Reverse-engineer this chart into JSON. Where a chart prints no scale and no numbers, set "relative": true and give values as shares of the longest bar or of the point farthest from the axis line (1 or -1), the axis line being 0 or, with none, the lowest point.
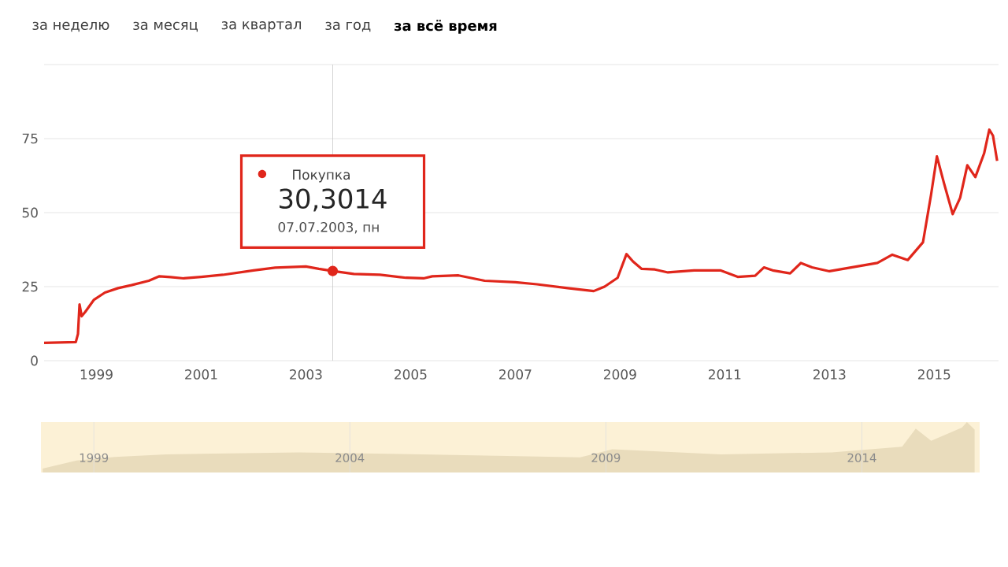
{
  "chart_data": [
    {
      "type": "line",
      "annotations": [
        "за неделю",
        "за месяц",
        "за квартал",
        "за год",
        "за всё время",
        {
          "text": "30,3014",
          "x": "2003-07-07",
          "y": 30.3014
        },
        {
          "text": "07.07.2003, пн",
          "x": "2003-07-07",
          "y": 30.3014
        }
      ],
      "x": [
        "1998-01-01",
        "1998-08-10",
        "1998-08-25",
        "1998-09-05",
        "1998-09-20",
        "1998-10-15",
        "1998-12-15",
        "1999-03-01",
        "1999-06-01",
        "1999-09-01",
        "2000-01-01",
        "2000-03-15",
        "2000-06-01",
        "2000-09-01",
        "2001-01-01",
        "2001-06-01",
        "2002-01-01",
        "2002-06-01",
        "2003-01-01",
        "2003-04-01",
        "2003-07-07",
        "2003-12-01",
        "2004-06-01",
        "2004-12-01",
        "2005-04-01",
        "2005-06-01",
        "2005-12-01",
        "2006-06-01",
        "2007-01-01",
        "2007-06-01",
        "2008-01-01",
        "2008-07-01",
        "2008-09-15",
        "2008-12-15",
        "2009-02-15",
        "2009-04-01",
        "2009-06-01",
        "2009-09-01",
        "2009-12-01",
        "2010-06-01",
        "2010-12-01",
        "2011-04-01",
        "2011-08-01",
        "2011-10-01",
        "2011-12-01",
        "2012-04-01",
        "2012-06-15",
        "2012-09-01",
        "2013-01-01",
        "2013-06-01",
        "2013-12-01",
        "2014-03-15",
        "2014-07-01",
        "2014-10-15",
        "2014-12-10",
        "2015-01-20",
        "2015-03-10",
        "2015-05-10",
        "2015-07-01",
        "2015-08-20",
        "2015-10-15",
        "2015-12-15",
        "2016-01-20",
        "2016-02-15",
        "2016-03-15"
      ],
      "series": [
        {
          "name": "Покупка",
          "color": "#e0261b",
          "values": [
            6,
            6.3,
            9,
            19,
            15,
            16.5,
            20.6,
            23,
            24.5,
            25.5,
            27,
            28.5,
            28.2,
            27.8,
            28.3,
            29,
            30.5,
            31.4,
            31.8,
            31,
            30.3,
            29.3,
            29,
            28,
            27.8,
            28.5,
            28.8,
            27,
            26.5,
            25.8,
            24.5,
            23.5,
            25,
            28,
            36,
            33.5,
            31,
            30.8,
            29.8,
            30.5,
            30.5,
            28.3,
            28.7,
            31.5,
            30.5,
            29.5,
            33,
            31.5,
            30.2,
            31.5,
            33,
            35.8,
            34,
            40,
            56,
            69,
            60,
            49.5,
            55,
            66,
            62,
            70,
            78,
            76,
            67.5
          ]
        }
      ],
      "xlim": [
        "1998-01-01",
        "2016-03-25"
      ],
      "ylim": [
        0,
        100
      ],
      "xticks": [
        "1999",
        "2001",
        "2003",
        "2005",
        "2007",
        "2009",
        "2011",
        "2013",
        "2015"
      ],
      "yticks": [
        0,
        25,
        50,
        75,
        {
          "value": 100,
          "label": null
        }
      ],
      "grid": "y",
      "ref_lines": [
        {
          "axis": "x",
          "value": "2003-07-07",
          "color": "#c8c8c8"
        }
      ]
    },
    {
      "type": "area",
      "relative": true,
      "color": "#e9dcbc",
      "x": [
        "1998-01-01",
        "1998-09-01",
        "1999-06-01",
        "2000-06-01",
        "2003-01-01",
        "2005-06-01",
        "2008-07-01",
        "2009-02-15",
        "2011-04-01",
        "2013-06-01",
        "2014-10-15",
        "2015-01-20",
        "2015-05-10",
        "2015-12-15",
        "2016-01-20",
        "2016-03-15"
      ],
      "values": [
        0.08,
        0.24,
        0.31,
        0.36,
        0.4,
        0.36,
        0.3,
        0.46,
        0.36,
        0.4,
        0.51,
        0.87,
        0.63,
        0.89,
        1,
        0.85
      ],
      "xlim": [
        "1997-12-20",
        "2016-04-20"
      ],
      "xticks": [
        "1999",
        "2004",
        "2009",
        "2014"
      ],
      "grid": "x",
      "bands": [
        {
          "axis": "x",
          "from": "1997-12-20",
          "to": "2016-04-20",
          "color": "#fcf1d6"
        }
      ]
    }
  ]
}
